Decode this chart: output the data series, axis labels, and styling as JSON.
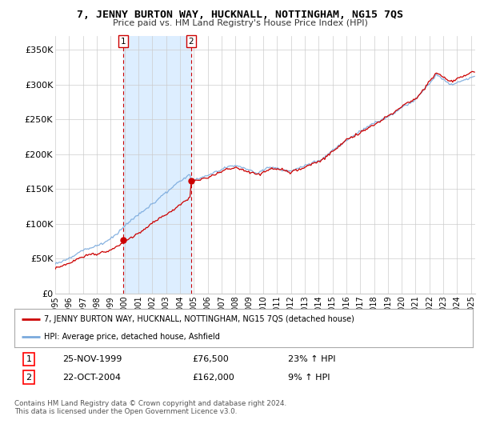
{
  "title": "7, JENNY BURTON WAY, HUCKNALL, NOTTINGHAM, NG15 7QS",
  "subtitle": "Price paid vs. HM Land Registry's House Price Index (HPI)",
  "legend_line1": "7, JENNY BURTON WAY, HUCKNALL, NOTTINGHAM, NG15 7QS (detached house)",
  "legend_line2": "HPI: Average price, detached house, Ashfield",
  "transaction1_date": "25-NOV-1999",
  "transaction1_price": "£76,500",
  "transaction1_hpi": "23% ↑ HPI",
  "transaction2_date": "22-OCT-2004",
  "transaction2_price": "£162,000",
  "transaction2_hpi": "9% ↑ HPI",
  "footer": "Contains HM Land Registry data © Crown copyright and database right 2024.\nThis data is licensed under the Open Government Licence v3.0.",
  "red_color": "#cc0000",
  "blue_color": "#7aaadd",
  "shade_color": "#ddeeff",
  "background_color": "#ffffff",
  "grid_color": "#cccccc",
  "ylim": [
    0,
    370000
  ],
  "yticks": [
    0,
    50000,
    100000,
    150000,
    200000,
    250000,
    300000,
    350000
  ],
  "transaction1_x": 1999.9,
  "transaction1_y": 76500,
  "transaction2_x": 2004.8,
  "transaction2_y": 162000,
  "vline1_x": 1999.9,
  "vline2_x": 2004.8,
  "xmin": 1995,
  "xmax": 2025.3
}
